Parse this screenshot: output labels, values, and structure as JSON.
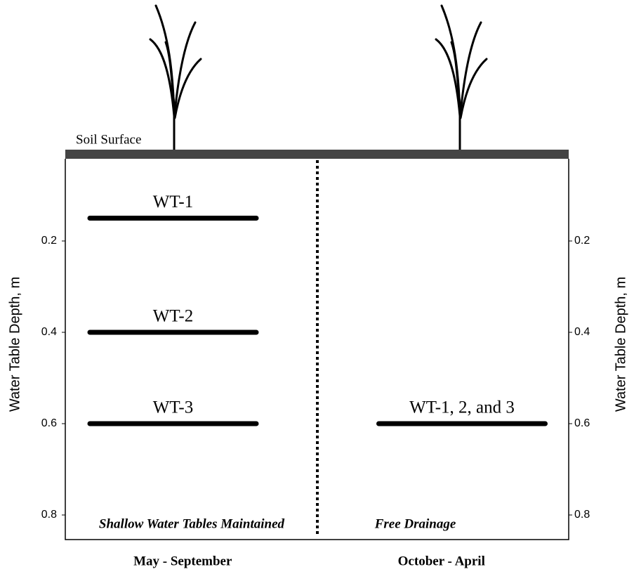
{
  "chart_data": {
    "type": "water-table",
    "surface_label": "Soil Surface",
    "ylabel": "Water Table Depth, m",
    "y2label": "Water Table Depth, m",
    "ylim": [
      0,
      0.85
    ],
    "yticks": [
      0.2,
      0.4,
      0.6,
      0.8
    ],
    "y2lim": [
      0,
      0.85
    ],
    "y2ticks": [
      0.2,
      0.4,
      0.6,
      0.8
    ],
    "inverted": true,
    "color": "#000000",
    "periods": [
      {
        "name": "May - September",
        "note": "Shallow Water Tables Maintained",
        "levels": [
          {
            "label": "WT-1",
            "depth": 0.15
          },
          {
            "label": "WT-2",
            "depth": 0.4
          },
          {
            "label": "WT-3",
            "depth": 0.6
          }
        ]
      },
      {
        "name": "October - April",
        "note": "Free Drainage",
        "levels": [
          {
            "label": "WT-1, 2, and 3",
            "depth": 0.6
          }
        ]
      }
    ]
  }
}
